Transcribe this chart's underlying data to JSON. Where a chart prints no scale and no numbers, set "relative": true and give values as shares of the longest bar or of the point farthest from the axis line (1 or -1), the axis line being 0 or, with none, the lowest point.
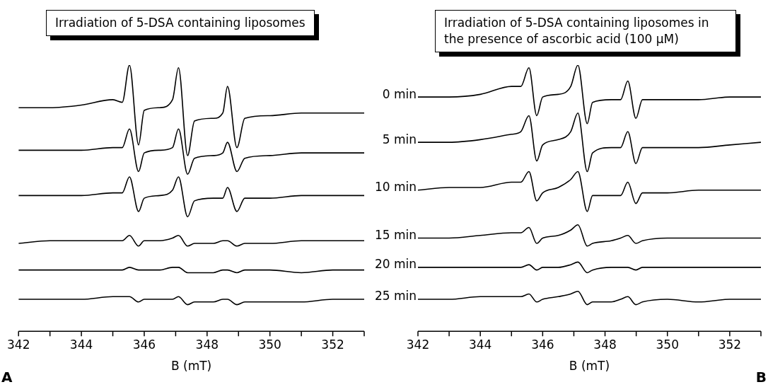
{
  "chart_data": [
    {
      "type": "line",
      "title": "Irradiation of 5-DSA containing liposomes",
      "xlabel": "B (mT)",
      "relative": true,
      "annotations": [
        "A"
      ],
      "xlim": [
        342,
        353
      ],
      "xticks": [
        342,
        {
          "value": 343,
          "label": null
        },
        344,
        {
          "value": 345,
          "label": null
        },
        346,
        {
          "value": 347,
          "label": null
        },
        348,
        {
          "value": 349,
          "label": null
        },
        350,
        {
          "value": 351,
          "label": null
        },
        352,
        {
          "value": 353,
          "label": null
        }
      ],
      "x": [
        342,
        343,
        344,
        345,
        345.3,
        345.53,
        345.82,
        346,
        346.5,
        346.9,
        347.09,
        347.38,
        347.6,
        348.2,
        348.5,
        348.65,
        348.95,
        349.2,
        350,
        351,
        352,
        353
      ],
      "series": [
        {
          "color": "#000000",
          "values": [
            0.84,
            0.84,
            0.85,
            0.87,
            0.86,
            1.0,
            0.7,
            0.83,
            0.84,
            0.87,
            0.99,
            0.66,
            0.79,
            0.8,
            0.82,
            0.92,
            0.69,
            0.8,
            0.81,
            0.82,
            0.82,
            0.82
          ]
        },
        {
          "color": "#000000",
          "values": [
            0.68,
            0.68,
            0.68,
            0.69,
            0.69,
            0.76,
            0.6,
            0.67,
            0.68,
            0.69,
            0.76,
            0.59,
            0.65,
            0.66,
            0.67,
            0.71,
            0.6,
            0.65,
            0.66,
            0.67,
            0.67,
            0.67
          ]
        },
        {
          "color": "#000000",
          "values": [
            0.51,
            0.51,
            0.51,
            0.52,
            0.52,
            0.58,
            0.45,
            0.5,
            0.51,
            0.53,
            0.58,
            0.43,
            0.49,
            0.5,
            0.5,
            0.54,
            0.45,
            0.5,
            0.5,
            0.51,
            0.51,
            0.51
          ]
        },
        {
          "color": "#000000",
          "values": [
            0.33,
            0.34,
            0.34,
            0.34,
            0.34,
            0.36,
            0.32,
            0.34,
            0.34,
            0.35,
            0.36,
            0.32,
            0.33,
            0.33,
            0.34,
            0.34,
            0.32,
            0.33,
            0.33,
            0.34,
            0.34,
            0.34
          ]
        },
        {
          "color": "#000000",
          "values": [
            0.23,
            0.23,
            0.23,
            0.23,
            0.23,
            0.24,
            0.23,
            0.23,
            0.23,
            0.24,
            0.24,
            0.22,
            0.22,
            0.22,
            0.23,
            0.23,
            0.22,
            0.23,
            0.23,
            0.22,
            0.23,
            0.23
          ]
        },
        {
          "color": "#000000",
          "values": [
            0.12,
            0.12,
            0.12,
            0.13,
            0.13,
            0.13,
            0.11,
            0.12,
            0.12,
            0.12,
            0.13,
            0.1,
            0.11,
            0.11,
            0.12,
            0.12,
            0.1,
            0.11,
            0.11,
            0.11,
            0.12,
            0.12
          ]
        }
      ]
    },
    {
      "type": "line",
      "title": "Irradiation of 5-DSA containing liposomes in the presence of ascorbic acid (100 μM)",
      "xlabel": "B (mT)",
      "relative": true,
      "annotations": [
        "B"
      ],
      "xlim": [
        342,
        353
      ],
      "xticks": [
        342,
        {
          "value": 343,
          "label": null
        },
        344,
        {
          "value": 345,
          "label": null
        },
        346,
        {
          "value": 347,
          "label": null
        },
        348,
        {
          "value": 349,
          "label": null
        },
        350,
        {
          "value": 351,
          "label": null
        },
        352,
        {
          "value": 353,
          "label": null
        }
      ],
      "x": [
        342,
        343,
        344,
        345,
        345.3,
        345.56,
        345.81,
        346,
        346.5,
        346.9,
        347.13,
        347.43,
        347.6,
        348.2,
        348.5,
        348.73,
        348.99,
        349.2,
        350,
        351,
        352,
        353
      ],
      "series": [
        {
          "name": "0 min",
          "color": "#000000",
          "values": [
            0.88,
            0.88,
            0.89,
            0.92,
            0.92,
            0.99,
            0.81,
            0.88,
            0.89,
            0.92,
            1.0,
            0.78,
            0.86,
            0.87,
            0.87,
            0.94,
            0.8,
            0.87,
            0.87,
            0.87,
            0.88,
            0.88
          ]
        },
        {
          "name": "5 min",
          "color": "#000000",
          "values": [
            0.71,
            0.71,
            0.72,
            0.74,
            0.75,
            0.81,
            0.64,
            0.7,
            0.72,
            0.75,
            0.82,
            0.6,
            0.67,
            0.69,
            0.69,
            0.75,
            0.63,
            0.69,
            0.69,
            0.69,
            0.7,
            0.71
          ]
        },
        {
          "name": "10 min",
          "color": "#000000",
          "values": [
            0.53,
            0.54,
            0.54,
            0.56,
            0.56,
            0.6,
            0.49,
            0.52,
            0.54,
            0.57,
            0.6,
            0.45,
            0.51,
            0.51,
            0.51,
            0.56,
            0.48,
            0.52,
            0.52,
            0.53,
            0.53,
            0.53
          ]
        },
        {
          "name": "15 min",
          "color": "#000000",
          "values": [
            0.35,
            0.35,
            0.36,
            0.37,
            0.37,
            0.39,
            0.33,
            0.35,
            0.36,
            0.38,
            0.4,
            0.32,
            0.33,
            0.34,
            0.35,
            0.36,
            0.33,
            0.34,
            0.35,
            0.35,
            0.35,
            0.35
          ]
        },
        {
          "name": "20 min",
          "color": "#000000",
          "values": [
            0.24,
            0.24,
            0.24,
            0.24,
            0.24,
            0.25,
            0.23,
            0.24,
            0.24,
            0.25,
            0.26,
            0.22,
            0.23,
            0.24,
            0.24,
            0.24,
            0.23,
            0.24,
            0.24,
            0.24,
            0.24,
            0.24
          ]
        },
        {
          "name": "25 min",
          "color": "#000000",
          "values": [
            0.12,
            0.12,
            0.13,
            0.13,
            0.13,
            0.14,
            0.11,
            0.12,
            0.13,
            0.14,
            0.15,
            0.1,
            0.11,
            0.11,
            0.12,
            0.13,
            0.1,
            0.11,
            0.12,
            0.11,
            0.12,
            0.12
          ]
        }
      ]
    }
  ]
}
